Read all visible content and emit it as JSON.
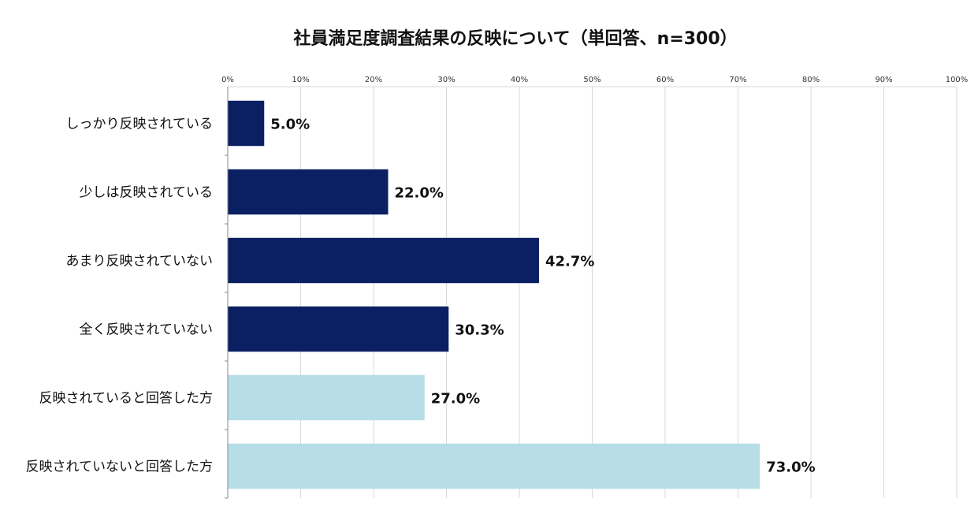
{
  "chart_data": {
    "type": "bar",
    "orientation": "horizontal",
    "title": "社員満足度調査結果の反映について（単回答、n=300）",
    "categories": [
      "しっかり反映されている",
      "少しは反映されている",
      "あまり反映されていない",
      "全く反映されていない",
      "反映されていると回答した方",
      "反映されていないと回答した方"
    ],
    "values": [
      5.0,
      22.0,
      42.7,
      30.3,
      27.0,
      73.0
    ],
    "value_labels": [
      "5.0%",
      "22.0%",
      "42.7%",
      "30.3%",
      "27.0%",
      "73.0%"
    ],
    "bar_colors": [
      "#0b1f63",
      "#0b1f63",
      "#0b1f63",
      "#0b1f63",
      "#b7dde6",
      "#b7dde6"
    ],
    "xlim": [
      0,
      100
    ],
    "x_ticks": [
      "0%",
      "10%",
      "20%",
      "30%",
      "40%",
      "50%",
      "60%",
      "70%",
      "80%",
      "90%",
      "100%"
    ],
    "axis_position": "top",
    "grid": true,
    "xlabel": "",
    "ylabel": ""
  }
}
